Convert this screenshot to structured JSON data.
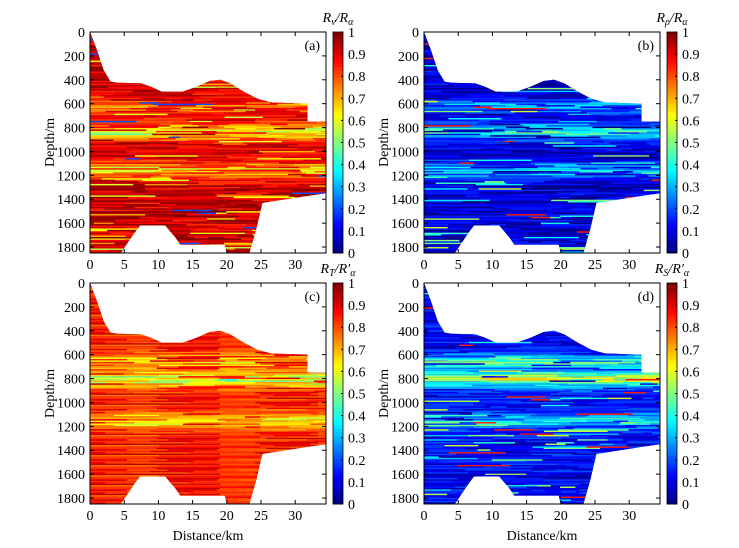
{
  "chart_data": [
    {
      "type": "heatmap",
      "panel_label": "(a)",
      "colorbar_title": {
        "main": "R",
        "sub1": "v",
        "sep": "/",
        "main2": "R",
        "sub2": "α",
        "prime": ""
      },
      "xlabel": "",
      "ylabel": "Depth/m",
      "xlim": [
        0,
        34.5
      ],
      "ylim": [
        1850,
        0
      ],
      "clim": [
        0,
        1
      ],
      "background_level": 0.92,
      "bands": [
        {
          "depth": 830,
          "value": 0.6
        },
        {
          "depth": 1150,
          "value": 0.7
        },
        {
          "depth": 620,
          "value": 0.8
        }
      ]
    },
    {
      "type": "heatmap",
      "panel_label": "(b)",
      "colorbar_title": {
        "main": "R",
        "sub1": "ρ",
        "sep": "/",
        "main2": "R",
        "sub2": "α",
        "prime": ""
      },
      "xlabel": "",
      "ylabel": "Depth/m",
      "xlim": [
        0,
        34.5
      ],
      "ylim": [
        1850,
        0
      ],
      "clim": [
        0,
        1
      ],
      "background_level": 0.08,
      "bands": [
        {
          "depth": 830,
          "value": 0.4
        },
        {
          "depth": 1150,
          "value": 0.3
        },
        {
          "depth": 620,
          "value": 0.25
        }
      ]
    },
    {
      "type": "heatmap",
      "panel_label": "(c)",
      "colorbar_title": {
        "main": "R",
        "sub1": "T",
        "sep": "/",
        "main2": "R",
        "sub2": "α",
        "prime": "′"
      },
      "xlabel": "Distance/km",
      "ylabel": "Depth/m",
      "xlim": [
        0,
        34.5
      ],
      "ylim": [
        1850,
        0
      ],
      "clim": [
        0,
        1
      ],
      "background_level": 0.85,
      "bands": [
        {
          "depth": 800,
          "value": 0.55
        },
        {
          "depth": 1150,
          "value": 0.65
        },
        {
          "depth": 650,
          "value": 0.7
        }
      ]
    },
    {
      "type": "heatmap",
      "panel_label": "(d)",
      "colorbar_title": {
        "main": "R",
        "sub1": "S",
        "sep": "/",
        "main2": "R",
        "sub2": "α",
        "prime": "′"
      },
      "xlabel": "Distance/km",
      "ylabel": "Depth/m",
      "xlim": [
        0,
        34.5
      ],
      "ylim": [
        1850,
        0
      ],
      "clim": [
        0,
        1
      ],
      "background_level": 0.12,
      "bands": [
        {
          "depth": 800,
          "value": 0.55
        },
        {
          "depth": 1150,
          "value": 0.35
        },
        {
          "depth": 650,
          "value": 0.4
        }
      ]
    }
  ],
  "axes": {
    "x_ticks": [
      "0",
      "5",
      "10",
      "15",
      "20",
      "25",
      "30"
    ],
    "x_tick_values": [
      0,
      5,
      10,
      15,
      20,
      25,
      30
    ],
    "y_ticks": [
      "0",
      "200",
      "400",
      "600",
      "800",
      "1000",
      "1200",
      "1400",
      "1600",
      "1800"
    ],
    "y_tick_values": [
      0,
      200,
      400,
      600,
      800,
      1000,
      1200,
      1400,
      1600,
      1800
    ],
    "colorbar_ticks": [
      "0",
      "0.1",
      "0.2",
      "0.3",
      "0.4",
      "0.5",
      "0.6",
      "0.7",
      "0.8",
      "0.9",
      "1"
    ],
    "colorbar_tick_values": [
      0,
      0.1,
      0.2,
      0.3,
      0.4,
      0.5,
      0.6,
      0.7,
      0.8,
      0.9,
      1
    ],
    "colormap": "jet"
  }
}
